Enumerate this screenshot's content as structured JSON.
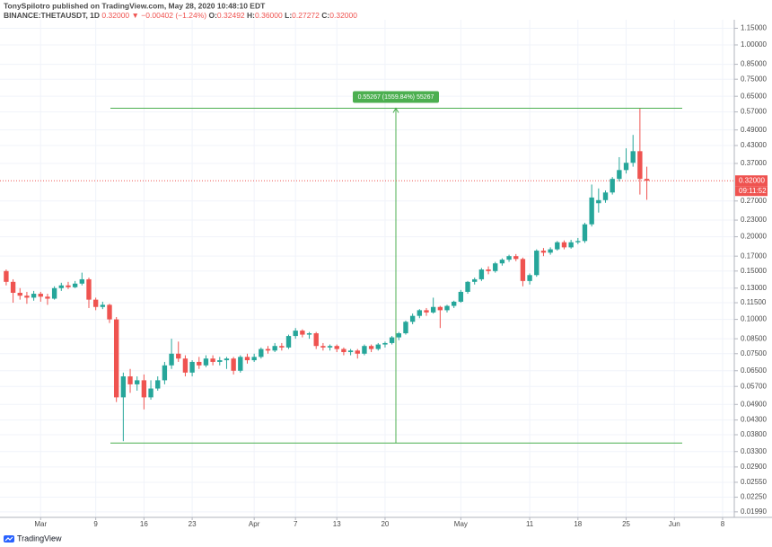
{
  "header": {
    "author_line": "TonySpilotro published on TradingView.com, May 28, 2020 10:48:10 EDT",
    "symbol": "BINANCE:THETAUSDT, 1D",
    "last": "0.32000",
    "change": "▼ −0.00402 (−1.24%)",
    "ohlc": [
      {
        "key": "O:",
        "value": "0.32492"
      },
      {
        "key": "H:",
        "value": "0.36000"
      },
      {
        "key": "L:",
        "value": "0.27272"
      },
      {
        "key": "C:",
        "value": "0.32000"
      }
    ]
  },
  "chart_data": {
    "type": "candlestick",
    "log_scale": true,
    "grid": true,
    "up_color": "#26a69a",
    "down_color": "#ef5350",
    "ohlc": [
      [
        0.15,
        0.152,
        0.133,
        0.137
      ],
      [
        0.137,
        0.14,
        0.115,
        0.125
      ],
      [
        0.125,
        0.13,
        0.118,
        0.122
      ],
      [
        0.122,
        0.126,
        0.114,
        0.12
      ],
      [
        0.12,
        0.127,
        0.117,
        0.124
      ],
      [
        0.124,
        0.126,
        0.116,
        0.121
      ],
      [
        0.121,
        0.124,
        0.113,
        0.119
      ],
      [
        0.119,
        0.132,
        0.118,
        0.13
      ],
      [
        0.13,
        0.136,
        0.127,
        0.133
      ],
      [
        0.133,
        0.137,
        0.129,
        0.131
      ],
      [
        0.131,
        0.138,
        0.13,
        0.135
      ],
      [
        0.135,
        0.148,
        0.133,
        0.14
      ],
      [
        0.14,
        0.142,
        0.11,
        0.118
      ],
      [
        0.118,
        0.12,
        0.108,
        0.111
      ],
      [
        0.111,
        0.116,
        0.109,
        0.113
      ],
      [
        0.113,
        0.114,
        0.097,
        0.1
      ],
      [
        0.1,
        0.102,
        0.05,
        0.052
      ],
      [
        0.052,
        0.064,
        0.036,
        0.062
      ],
      [
        0.062,
        0.066,
        0.054,
        0.058
      ],
      [
        0.058,
        0.062,
        0.055,
        0.06
      ],
      [
        0.06,
        0.063,
        0.047,
        0.052
      ],
      [
        0.052,
        0.06,
        0.051,
        0.056
      ],
      [
        0.056,
        0.062,
        0.055,
        0.06
      ],
      [
        0.06,
        0.07,
        0.058,
        0.068
      ],
      [
        0.068,
        0.085,
        0.066,
        0.075
      ],
      [
        0.075,
        0.083,
        0.07,
        0.072
      ],
      [
        0.072,
        0.074,
        0.062,
        0.064
      ],
      [
        0.064,
        0.071,
        0.062,
        0.07
      ],
      [
        0.07,
        0.073,
        0.066,
        0.068
      ],
      [
        0.068,
        0.074,
        0.067,
        0.072
      ],
      [
        0.072,
        0.074,
        0.068,
        0.07
      ],
      [
        0.07,
        0.073,
        0.068,
        0.071
      ],
      [
        0.071,
        0.073,
        0.066,
        0.072
      ],
      [
        0.072,
        0.073,
        0.063,
        0.065
      ],
      [
        0.065,
        0.074,
        0.064,
        0.073
      ],
      [
        0.073,
        0.075,
        0.069,
        0.071
      ],
      [
        0.071,
        0.075,
        0.07,
        0.073
      ],
      [
        0.073,
        0.079,
        0.072,
        0.078
      ],
      [
        0.078,
        0.08,
        0.075,
        0.077
      ],
      [
        0.077,
        0.082,
        0.076,
        0.08
      ],
      [
        0.08,
        0.082,
        0.077,
        0.079
      ],
      [
        0.079,
        0.088,
        0.078,
        0.087
      ],
      [
        0.087,
        0.093,
        0.085,
        0.091
      ],
      [
        0.091,
        0.092,
        0.086,
        0.088
      ],
      [
        0.088,
        0.09,
        0.085,
        0.089
      ],
      [
        0.089,
        0.09,
        0.078,
        0.08
      ],
      [
        0.08,
        0.082,
        0.077,
        0.079
      ],
      [
        0.079,
        0.081,
        0.077,
        0.08
      ],
      [
        0.08,
        0.081,
        0.076,
        0.078
      ],
      [
        0.078,
        0.079,
        0.074,
        0.076
      ],
      [
        0.076,
        0.078,
        0.074,
        0.077
      ],
      [
        0.077,
        0.078,
        0.072,
        0.075
      ],
      [
        0.075,
        0.081,
        0.074,
        0.08
      ],
      [
        0.08,
        0.081,
        0.076,
        0.078
      ],
      [
        0.078,
        0.082,
        0.077,
        0.081
      ],
      [
        0.081,
        0.083,
        0.079,
        0.082
      ],
      [
        0.082,
        0.087,
        0.081,
        0.086
      ],
      [
        0.086,
        0.09,
        0.084,
        0.089
      ],
      [
        0.089,
        0.099,
        0.088,
        0.098
      ],
      [
        0.098,
        0.105,
        0.096,
        0.103
      ],
      [
        0.103,
        0.109,
        0.101,
        0.108
      ],
      [
        0.108,
        0.11,
        0.103,
        0.106
      ],
      [
        0.106,
        0.12,
        0.105,
        0.111
      ],
      [
        0.111,
        0.112,
        0.093,
        0.108
      ],
      [
        0.108,
        0.113,
        0.106,
        0.112
      ],
      [
        0.112,
        0.117,
        0.11,
        0.116
      ],
      [
        0.116,
        0.128,
        0.115,
        0.126
      ],
      [
        0.126,
        0.138,
        0.124,
        0.137
      ],
      [
        0.137,
        0.142,
        0.134,
        0.14
      ],
      [
        0.14,
        0.154,
        0.138,
        0.152
      ],
      [
        0.152,
        0.156,
        0.146,
        0.15
      ],
      [
        0.15,
        0.162,
        0.148,
        0.16
      ],
      [
        0.16,
        0.167,
        0.157,
        0.165
      ],
      [
        0.165,
        0.172,
        0.162,
        0.17
      ],
      [
        0.17,
        0.173,
        0.163,
        0.166
      ],
      [
        0.166,
        0.168,
        0.132,
        0.138
      ],
      [
        0.138,
        0.147,
        0.134,
        0.145
      ],
      [
        0.145,
        0.18,
        0.143,
        0.178
      ],
      [
        0.178,
        0.182,
        0.17,
        0.175
      ],
      [
        0.175,
        0.183,
        0.172,
        0.18
      ],
      [
        0.18,
        0.193,
        0.178,
        0.191
      ],
      [
        0.191,
        0.194,
        0.18,
        0.183
      ],
      [
        0.183,
        0.195,
        0.181,
        0.191
      ],
      [
        0.191,
        0.198,
        0.188,
        0.193
      ],
      [
        0.193,
        0.225,
        0.19,
        0.222
      ],
      [
        0.222,
        0.31,
        0.218,
        0.278
      ],
      [
        0.265,
        0.3,
        0.245,
        0.272
      ],
      [
        0.272,
        0.295,
        0.266,
        0.29
      ],
      [
        0.29,
        0.33,
        0.285,
        0.325
      ],
      [
        0.325,
        0.39,
        0.318,
        0.35
      ],
      [
        0.35,
        0.42,
        0.34,
        0.372
      ],
      [
        0.372,
        0.47,
        0.36,
        0.41
      ],
      [
        0.41,
        0.586,
        0.285,
        0.325
      ],
      [
        0.32492,
        0.36,
        0.27272,
        0.32
      ]
    ],
    "xlim": [
      -0.9,
      105.7
    ],
    "xticks": [
      {
        "value": 5,
        "label": "Mar"
      },
      {
        "value": 13,
        "label": "9"
      },
      {
        "value": 20,
        "label": "16"
      },
      {
        "value": 27,
        "label": "23"
      },
      {
        "value": 36,
        "label": "Apr"
      },
      {
        "value": 42,
        "label": "7"
      },
      {
        "value": 48,
        "label": "13"
      },
      {
        "value": 55,
        "label": "20"
      },
      {
        "value": 66,
        "label": "May"
      },
      {
        "value": 76,
        "label": "11"
      },
      {
        "value": 83,
        "label": "18"
      },
      {
        "value": 90,
        "label": "25"
      },
      {
        "value": 97,
        "label": "Jun"
      },
      {
        "value": 104,
        "label": "8"
      }
    ],
    "ylim": [
      0.019,
      1.235
    ],
    "yticks": [
      {
        "value": 1.15,
        "label": "1.15000"
      },
      {
        "value": 1.0,
        "label": "1.00000"
      },
      {
        "value": 0.85,
        "label": "0.85000"
      },
      {
        "value": 0.75,
        "label": "0.75000"
      },
      {
        "value": 0.65,
        "label": "0.65000"
      },
      {
        "value": 0.57,
        "label": "0.57000"
      },
      {
        "value": 0.49,
        "label": "0.49000"
      },
      {
        "value": 0.43,
        "label": "0.43000"
      },
      {
        "value": 0.37,
        "label": "0.37000"
      },
      {
        "value": 0.27,
        "label": "0.27000"
      },
      {
        "value": 0.23,
        "label": "0.23000"
      },
      {
        "value": 0.2,
        "label": "0.20000"
      },
      {
        "value": 0.17,
        "label": "0.17000"
      },
      {
        "value": 0.15,
        "label": "0.15000"
      },
      {
        "value": 0.13,
        "label": "0.13000"
      },
      {
        "value": 0.115,
        "label": "0.11500"
      },
      {
        "value": 0.1,
        "label": "0.10000"
      },
      {
        "value": 0.085,
        "label": "0.08500"
      },
      {
        "value": 0.075,
        "label": "0.07500"
      },
      {
        "value": 0.065,
        "label": "0.06500"
      },
      {
        "value": 0.057,
        "label": "0.05700"
      },
      {
        "value": 0.049,
        "label": "0.04900"
      },
      {
        "value": 0.043,
        "label": "0.04300"
      },
      {
        "value": 0.038,
        "label": "0.03800"
      },
      {
        "value": 0.033,
        "label": "0.03300"
      },
      {
        "value": 0.029,
        "label": "0.02900"
      },
      {
        "value": 0.0255,
        "label": "0.02550"
      },
      {
        "value": 0.0225,
        "label": "0.02250"
      },
      {
        "value": 0.0199,
        "label": "0.01990"
      }
    ],
    "current_price": {
      "value": 0.32,
      "label": "0.32000",
      "countdown": "09:11:52",
      "color": "#ef5350"
    },
    "measure": {
      "label": "0.55267 (1559.84%) 55267",
      "from": 0.035431,
      "to": 0.5881,
      "color": "#4caf50"
    }
  },
  "footer": {
    "brand": "TradingView"
  }
}
